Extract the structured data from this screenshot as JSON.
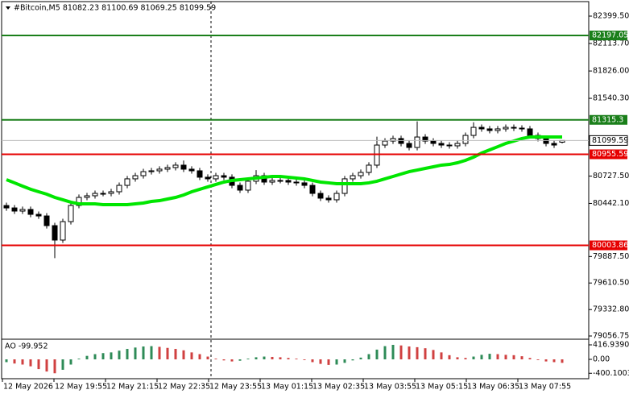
{
  "chart_data": {
    "type": "candlestick",
    "title": "#Bitcoin,M5  81082.23 81100.69 81069.25 81099.59",
    "x_labels": [
      "12 May 2026",
      "12 May 19:55",
      "12 May 21:15",
      "12 May 22:35",
      "12 May 23:55",
      "13 May 01:15",
      "13 May 02:35",
      "13 May 03:55",
      "13 May 05:15",
      "13 May 06:35",
      "13 May 07:55"
    ],
    "open": [
      80420,
      80395,
      80362,
      80379,
      80328,
      80311,
      80210,
      80059,
      80252,
      80421,
      80505,
      80522,
      80547,
      80547,
      80564,
      80631,
      80699,
      80732,
      80774,
      80783,
      80800,
      80817,
      80842,
      80800,
      80783,
      80716,
      80699,
      80732,
      80716,
      80631,
      80581,
      80674,
      80732,
      80665,
      80682,
      80682,
      80665,
      80657,
      80631,
      80547,
      80497,
      80480,
      80547,
      80699,
      80732,
      80766,
      80842,
      81052,
      81094,
      81120,
      81069,
      81027,
      81136,
      81094,
      81069,
      81052,
      81044,
      81069,
      81153,
      81237,
      81221,
      81204,
      81221,
      81237,
      81229,
      81221,
      81153,
      81120,
      81069,
      81082.23
    ],
    "high": [
      80450,
      80425,
      80409,
      80409,
      80358,
      80341,
      80240,
      80282,
      80451,
      80535,
      80552,
      80577,
      80577,
      80594,
      80661,
      80729,
      80762,
      80804,
      80813,
      80830,
      80847,
      80872,
      80890,
      80830,
      80813,
      80746,
      80762,
      80762,
      80746,
      80661,
      80704,
      80790,
      80762,
      80712,
      80712,
      80712,
      80695,
      80687,
      80661,
      80577,
      80527,
      80577,
      80729,
      80762,
      80796,
      80872,
      81140,
      81124,
      81150,
      81150,
      81099,
      81300,
      81166,
      81124,
      81099,
      81082,
      81099,
      81183,
      81290,
      81267,
      81251,
      81251,
      81267,
      81267,
      81259,
      81251,
      81183,
      81150,
      81099,
      81100.69
    ],
    "low": [
      80365,
      80332,
      80332,
      80298,
      80281,
      80180,
      79870,
      80029,
      80222,
      80391,
      80475,
      80492,
      80517,
      80517,
      80534,
      80601,
      80669,
      80702,
      80744,
      80753,
      80770,
      80787,
      80770,
      80753,
      80686,
      80669,
      80669,
      80686,
      80601,
      80551,
      80551,
      80644,
      80635,
      80635,
      80652,
      80635,
      80627,
      80601,
      80517,
      80467,
      80450,
      80450,
      80517,
      80669,
      80702,
      80736,
      80812,
      81022,
      81064,
      81039,
      80997,
      80997,
      81064,
      81039,
      81022,
      81014,
      81014,
      81039,
      81123,
      81191,
      81174,
      81174,
      81191,
      81199,
      81191,
      81123,
      81090,
      81039,
      81022,
      81069.25
    ],
    "close": [
      80395,
      80362,
      80379,
      80328,
      80311,
      80210,
      80059,
      80252,
      80421,
      80505,
      80522,
      80547,
      80547,
      80564,
      80631,
      80699,
      80732,
      80774,
      80783,
      80800,
      80817,
      80842,
      80800,
      80783,
      80716,
      80699,
      80732,
      80716,
      80631,
      80581,
      80674,
      80732,
      80665,
      80682,
      80682,
      80665,
      80657,
      80631,
      80547,
      80497,
      80480,
      80547,
      80699,
      80732,
      80766,
      80842,
      81052,
      81094,
      81120,
      81069,
      81027,
      81136,
      81094,
      81069,
      81052,
      81044,
      81069,
      81153,
      81237,
      81221,
      81204,
      81221,
      81237,
      81229,
      81221,
      81153,
      81120,
      81069,
      81052,
      81099.59
    ],
    "ma": {
      "color": "#00e600",
      "values": [
        80690,
        80657,
        80623,
        80590,
        80564,
        80539,
        80505,
        80480,
        80455,
        80438,
        80438,
        80438,
        80429,
        80429,
        80429,
        80429,
        80438,
        80446,
        80463,
        80471,
        80488,
        80505,
        80530,
        80564,
        80590,
        80615,
        80640,
        80665,
        80682,
        80690,
        80699,
        80707,
        80716,
        80724,
        80724,
        80716,
        80707,
        80699,
        80682,
        80665,
        80657,
        80648,
        80648,
        80648,
        80648,
        80657,
        80674,
        80699,
        80724,
        80749,
        80774,
        80791,
        80808,
        80825,
        80842,
        80850,
        80867,
        80892,
        80926,
        80968,
        81002,
        81035,
        81069,
        81094,
        81120,
        81136,
        81136,
        81136,
        81136,
        81136
      ]
    },
    "ylim": [
      79031.5,
      82542.6
    ],
    "yticks": [
      {
        "value": 82399.5,
        "label": "82399.50"
      },
      {
        "value": 82113.7,
        "label": "82113.70"
      },
      {
        "value": 81826,
        "label": "81826.00"
      },
      {
        "value": 81540.3,
        "label": "81540.30"
      },
      {
        "value": 80727.5,
        "label": "80727.50"
      },
      {
        "value": 80442.1,
        "label": "80442.10"
      },
      {
        "value": 79887.5,
        "label": "79887.50"
      },
      {
        "value": 79610.5,
        "label": "79610.50"
      },
      {
        "value": 79332.8,
        "label": "79332.80"
      },
      79056.75
    ],
    "levels": [
      {
        "value": 82197.05,
        "color": "#1a7f1a"
      },
      {
        "value": 81315.3,
        "color": "#1a7f1a"
      },
      {
        "value": 80955.59,
        "color": "#e60000"
      },
      {
        "value": 80003.86,
        "color": "#e60000"
      }
    ],
    "last_price": 81099.59,
    "ao": {
      "title": "AO -99.952",
      "values": [
        -80,
        -120,
        -150,
        -200,
        -280,
        -350,
        -400,
        -300,
        -150,
        20,
        100,
        150,
        180,
        200,
        250,
        300,
        340,
        370,
        380,
        360,
        330,
        300,
        260,
        200,
        150,
        80,
        20,
        -30,
        -60,
        -40,
        20,
        60,
        80,
        70,
        60,
        40,
        20,
        -20,
        -80,
        -130,
        -160,
        -150,
        -100,
        -30,
        50,
        150,
        280,
        380,
        416.939,
        400,
        370,
        350,
        320,
        270,
        200,
        120,
        60,
        40,
        80,
        130,
        160,
        150,
        130,
        120,
        90,
        40,
        -20,
        -60,
        -80,
        -99.952
      ],
      "ylim": [
        -556,
        556
      ],
      "yticks": [
        {
          "value": 416.939,
          "label": "416.9390"
        },
        {
          "value": 0,
          "label": "0.00"
        },
        {
          "value": -400.1003,
          "label": "-400.1003"
        }
      ],
      "up_color": "#2e8b57",
      "down_color": "#d04040"
    }
  }
}
